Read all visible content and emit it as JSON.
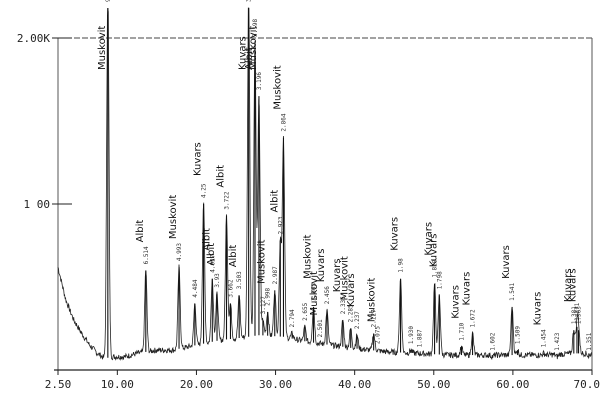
{
  "chart_data": {
    "type": "line",
    "xlim": [
      2.5,
      70
    ],
    "ylim": [
      0,
      2.0
    ],
    "x_ticks": [
      {
        "value": 2.5,
        "label": "2.50"
      },
      {
        "value": 10,
        "label": "10.00"
      },
      {
        "value": 20,
        "label": "20.00"
      },
      {
        "value": 30,
        "label": "30.00"
      },
      {
        "value": 40,
        "label": "40.00"
      },
      {
        "value": 50,
        "label": "50.00"
      },
      {
        "value": 60,
        "label": "60.00"
      },
      {
        "value": 70,
        "label": "70.0"
      }
    ],
    "y_ticks": [
      {
        "value": 1.0,
        "label": "1 00"
      },
      {
        "value": 2.0,
        "label": "2.00K"
      }
    ],
    "peaks": [
      {
        "x": 8.8,
        "y": 2.35,
        "d": "9.972",
        "mineral": "Muskovit"
      },
      {
        "x": 13.6,
        "y": 0.6,
        "d": "6.514",
        "mineral": "Albit"
      },
      {
        "x": 17.8,
        "y": 0.62,
        "d": "4.993",
        "mineral": "Muskovit"
      },
      {
        "x": 19.8,
        "y": 0.4,
        "d": "4.484",
        "mineral": ""
      },
      {
        "x": 20.9,
        "y": 1.0,
        "d": "4.25",
        "mineral": "Kuvars"
      },
      {
        "x": 22.0,
        "y": 0.55,
        "d": "4.027",
        "mineral": "Albit"
      },
      {
        "x": 22.6,
        "y": 0.46,
        "d": "3.93",
        "mineral": "Albit"
      },
      {
        "x": 23.8,
        "y": 0.93,
        "d": "3.722",
        "mineral": "Albit"
      },
      {
        "x": 24.3,
        "y": 0.4,
        "d": "3.662",
        "mineral": ""
      },
      {
        "x": 25.4,
        "y": 0.45,
        "d": "3.503",
        "mineral": "Albit"
      },
      {
        "x": 26.6,
        "y": 2.3,
        "d": "3.34",
        "mineral": "Kuvars"
      },
      {
        "x": 27.4,
        "y": 1.97,
        "d": "3.198",
        "mineral": "Albit"
      },
      {
        "x": 27.9,
        "y": 1.65,
        "d": "3.196",
        "mineral": "Muskovit"
      },
      {
        "x": 28.4,
        "y": 0.3,
        "d": "3.127",
        "mineral": ""
      },
      {
        "x": 29.0,
        "y": 0.35,
        "d": "2.998",
        "mineral": "Muskovit"
      },
      {
        "x": 29.9,
        "y": 0.48,
        "d": "2.987",
        "mineral": ""
      },
      {
        "x": 30.6,
        "y": 0.78,
        "d": "2.923",
        "mineral": "Albit"
      },
      {
        "x": 31.0,
        "y": 1.4,
        "d": "2.864",
        "mineral": "Muskovit"
      },
      {
        "x": 32.1,
        "y": 0.22,
        "d": "2.794",
        "mineral": ""
      },
      {
        "x": 33.7,
        "y": 0.26,
        "d": "2.655",
        "mineral": ""
      },
      {
        "x": 34.8,
        "y": 0.38,
        "d": "2.563",
        "mineral": "Muskovit"
      },
      {
        "x": 35.6,
        "y": 0.16,
        "d": "2.501",
        "mineral": "Muskovit"
      },
      {
        "x": 36.5,
        "y": 0.36,
        "d": "2.456",
        "mineral": "Kuvars"
      },
      {
        "x": 38.5,
        "y": 0.3,
        "d": "2.335",
        "mineral": "Kuvars"
      },
      {
        "x": 39.5,
        "y": 0.25,
        "d": "2.285",
        "mineral": "Muskovit"
      },
      {
        "x": 40.3,
        "y": 0.21,
        "d": "2.237",
        "mineral": "Kuvars"
      },
      {
        "x": 42.4,
        "y": 0.22,
        "d": "2.127",
        "mineral": ""
      },
      {
        "x": 42.9,
        "y": 0.12,
        "d": "2.075",
        "mineral": "Muskovit"
      },
      {
        "x": 45.8,
        "y": 0.55,
        "d": "1.98",
        "mineral": "Kuvars"
      },
      {
        "x": 47.1,
        "y": 0.12,
        "d": "1.930",
        "mineral": ""
      },
      {
        "x": 48.2,
        "y": 0.1,
        "d": "1.887",
        "mineral": ""
      },
      {
        "x": 50.1,
        "y": 0.52,
        "d": "1.818",
        "mineral": "Kuvars"
      },
      {
        "x": 50.7,
        "y": 0.45,
        "d": "1.798",
        "mineral": "Kuvars"
      },
      {
        "x": 53.5,
        "y": 0.14,
        "d": "1.710",
        "mineral": "Kuvars"
      },
      {
        "x": 54.9,
        "y": 0.22,
        "d": "1.672",
        "mineral": "Kuvars"
      },
      {
        "x": 57.4,
        "y": 0.08,
        "d": "1.602",
        "mineral": ""
      },
      {
        "x": 59.9,
        "y": 0.38,
        "d": "1.541",
        "mineral": "Kuvars"
      },
      {
        "x": 60.6,
        "y": 0.12,
        "d": "1.509",
        "mineral": ""
      },
      {
        "x": 63.9,
        "y": 0.1,
        "d": "1.454",
        "mineral": "Kuvars"
      },
      {
        "x": 65.6,
        "y": 0.08,
        "d": "1.423",
        "mineral": ""
      },
      {
        "x": 67.7,
        "y": 0.24,
        "d": "1.381",
        "mineral": "Kuvars"
      },
      {
        "x": 68.1,
        "y": 0.26,
        "d": "1.371",
        "mineral": ""
      },
      {
        "x": 68.3,
        "y": 0.24,
        "d": "1.363",
        "mineral": "Kuvars"
      },
      {
        "x": 69.6,
        "y": 0.08,
        "d": "1.351",
        "mineral": ""
      }
    ],
    "background": [
      [
        2.5,
        0.62
      ],
      [
        3.5,
        0.42
      ],
      [
        4.5,
        0.3
      ],
      [
        5.5,
        0.22
      ],
      [
        6.5,
        0.15
      ],
      [
        7.5,
        0.1
      ],
      [
        8.4,
        0.07
      ],
      [
        9.5,
        0.08
      ],
      [
        11,
        0.08
      ],
      [
        12.5,
        0.1
      ],
      [
        15,
        0.12
      ],
      [
        17,
        0.12
      ],
      [
        19,
        0.14
      ],
      [
        21,
        0.16
      ],
      [
        23,
        0.18
      ],
      [
        25,
        0.19
      ],
      [
        28,
        0.21
      ],
      [
        31,
        0.2
      ],
      [
        34,
        0.17
      ],
      [
        37,
        0.15
      ],
      [
        40,
        0.13
      ],
      [
        44,
        0.11
      ],
      [
        48,
        0.1
      ],
      [
        52,
        0.09
      ],
      [
        56,
        0.09
      ],
      [
        60,
        0.09
      ],
      [
        64,
        0.09
      ],
      [
        68,
        0.1
      ],
      [
        70,
        0.1
      ]
    ]
  }
}
